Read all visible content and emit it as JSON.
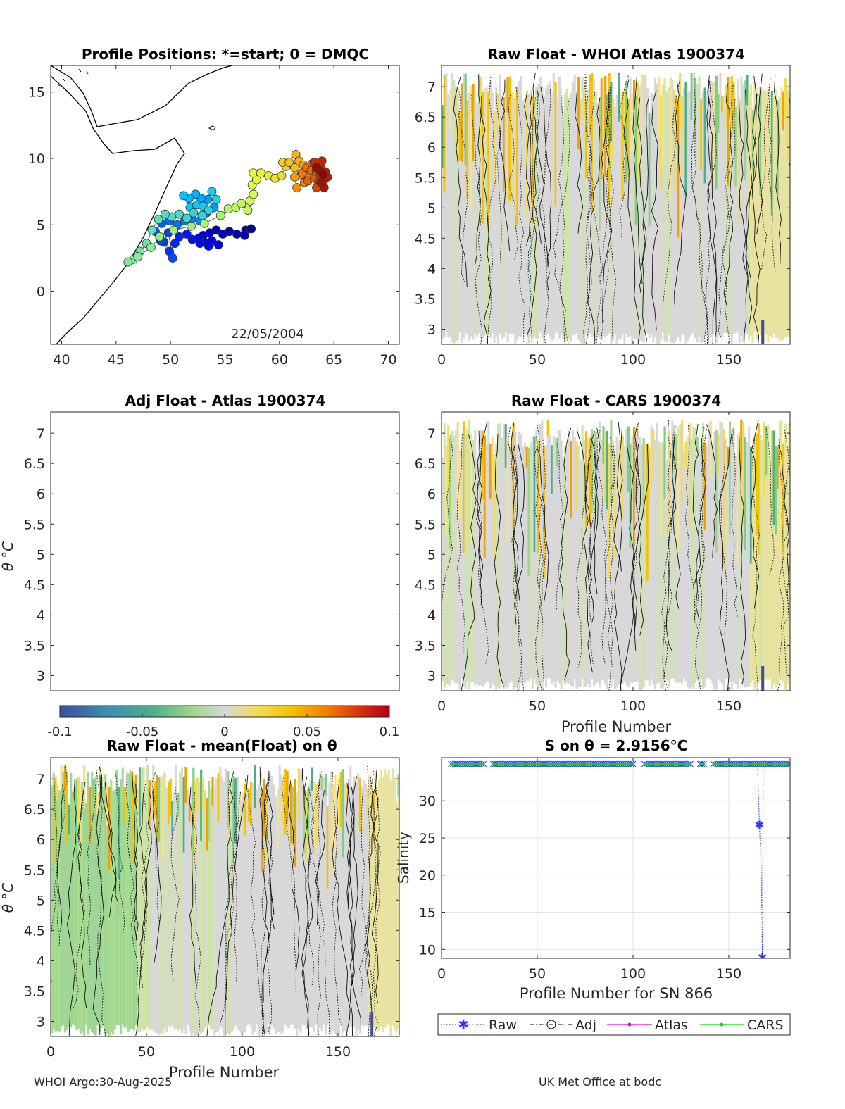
{
  "footer": {
    "left": "WHOI Argo:30-Aug-2025",
    "right": "UK Met Office at bodc"
  },
  "chart_data": [
    {
      "id": "positions",
      "type": "scatter",
      "title": "Profile Positions: *=start; 0 = DMQC",
      "xlim": [
        39,
        71
      ],
      "ylim": [
        -4,
        17
      ],
      "xticks": [
        40,
        45,
        50,
        55,
        60,
        65,
        70
      ],
      "yticks": [
        0,
        5,
        10,
        15
      ],
      "annotation": "22/05/2004",
      "track": [
        [
          56.9,
          4.6
        ],
        [
          57.4,
          4.7
        ],
        [
          56.8,
          4.2
        ],
        [
          56.1,
          4.3
        ],
        [
          55.4,
          4.5
        ],
        [
          54.8,
          4.3
        ],
        [
          54.2,
          4.6
        ],
        [
          53.6,
          4.4
        ],
        [
          53.0,
          4.2
        ],
        [
          52.6,
          4.0
        ],
        [
          53.1,
          3.7
        ],
        [
          53.8,
          3.8
        ],
        [
          54.4,
          3.5
        ],
        [
          53.5,
          3.4
        ],
        [
          52.7,
          3.6
        ],
        [
          52.0,
          3.9
        ],
        [
          51.5,
          4.3
        ],
        [
          50.8,
          4.1
        ],
        [
          50.4,
          3.6
        ],
        [
          49.9,
          3.0
        ],
        [
          49.4,
          3.7
        ],
        [
          49.8,
          4.4
        ],
        [
          50.2,
          2.5
        ],
        [
          49.1,
          3.8
        ],
        [
          48.6,
          4.5
        ],
        [
          49.2,
          5.1
        ],
        [
          49.9,
          5.3
        ],
        [
          50.6,
          5.0
        ],
        [
          51.3,
          5.3
        ],
        [
          52.0,
          5.5
        ],
        [
          52.7,
          5.3
        ],
        [
          53.3,
          5.9
        ],
        [
          54.0,
          6.3
        ],
        [
          53.4,
          6.9
        ],
        [
          52.8,
          7.0
        ],
        [
          52.3,
          7.3
        ],
        [
          51.7,
          7.0
        ],
        [
          51.2,
          7.2
        ],
        [
          51.8,
          6.3
        ],
        [
          52.4,
          6.5
        ],
        [
          53.0,
          6.4
        ],
        [
          53.8,
          7.5
        ],
        [
          54.2,
          6.9
        ],
        [
          53.5,
          6.1
        ],
        [
          52.9,
          5.7
        ],
        [
          52.1,
          5.9
        ],
        [
          51.5,
          5.5
        ],
        [
          50.8,
          5.8
        ],
        [
          50.1,
          5.6
        ],
        [
          49.5,
          5.8
        ],
        [
          48.9,
          5.4
        ],
        [
          48.3,
          4.6
        ],
        [
          47.8,
          3.6
        ],
        [
          47.2,
          3.0
        ],
        [
          46.6,
          2.4
        ],
        [
          46.1,
          2.2
        ],
        [
          47.0,
          2.6
        ],
        [
          48.2,
          3.3
        ],
        [
          49.0,
          4.1
        ],
        [
          50.3,
          4.6
        ],
        [
          51.9,
          4.9
        ],
        [
          53.1,
          5.1
        ],
        [
          54.6,
          5.7
        ],
        [
          55.3,
          6.2
        ],
        [
          56.0,
          6.3
        ],
        [
          56.5,
          6.6
        ],
        [
          57.1,
          6.1
        ],
        [
          57.3,
          6.8
        ],
        [
          57.6,
          7.3
        ],
        [
          57.5,
          8.0
        ],
        [
          57.9,
          8.4
        ],
        [
          57.6,
          8.9
        ],
        [
          58.3,
          8.9
        ],
        [
          59.0,
          8.7
        ],
        [
          59.6,
          8.5
        ],
        [
          60.2,
          8.7
        ],
        [
          60.6,
          9.4
        ],
        [
          60.3,
          9.7
        ],
        [
          60.9,
          9.7
        ],
        [
          61.4,
          9.3
        ],
        [
          61.5,
          10.3
        ],
        [
          61.8,
          9.8
        ],
        [
          62.2,
          9.5
        ],
        [
          62.0,
          8.8
        ],
        [
          61.4,
          8.6
        ],
        [
          61.6,
          7.8
        ],
        [
          62.3,
          8.2
        ],
        [
          62.7,
          8.6
        ],
        [
          62.1,
          8.9
        ],
        [
          62.5,
          9.3
        ],
        [
          63.0,
          9.6
        ],
        [
          62.9,
          9.1
        ],
        [
          62.6,
          8.3
        ],
        [
          63.2,
          8.5
        ],
        [
          63.4,
          9.0
        ],
        [
          63.6,
          8.2
        ],
        [
          63.4,
          7.8
        ],
        [
          63.8,
          8.7
        ],
        [
          64.1,
          8.4
        ],
        [
          63.8,
          9.3
        ],
        [
          63.2,
          9.7
        ],
        [
          63.9,
          9.8
        ],
        [
          64.2,
          9.0
        ],
        [
          64.4,
          8.6
        ],
        [
          64.1,
          7.8
        ],
        [
          63.8,
          8.2
        ],
        [
          63.7,
          9.1
        ],
        [
          63.4,
          9.3
        ],
        [
          64.0,
          8.8
        ]
      ]
    },
    {
      "id": "whoi",
      "type": "heatmap",
      "title": "Raw Float - WHOI Atlas  1900374",
      "xlim": [
        0,
        182
      ],
      "ylim": [
        2.75,
        7.35
      ],
      "xticks": [
        0,
        50,
        100,
        150
      ],
      "yticks": [
        3,
        3.5,
        4,
        4.5,
        5,
        5.5,
        6,
        6.5,
        7
      ],
      "xlabel": "",
      "ylabel": ""
    },
    {
      "id": "adj",
      "type": "heatmap",
      "title": "Adj Float - Atlas  1900374",
      "xlim": [
        0,
        182
      ],
      "ylim": [
        2.75,
        7.35
      ],
      "xticks": [],
      "yticks": [
        3,
        3.5,
        4,
        4.5,
        5,
        5.5,
        6,
        6.5,
        7
      ],
      "xlabel": "",
      "ylabel": "θ °C"
    },
    {
      "id": "cars",
      "type": "heatmap",
      "title": "Raw Float - CARS  1900374",
      "xlim": [
        0,
        182
      ],
      "ylim": [
        2.75,
        7.35
      ],
      "xticks": [
        0,
        50,
        100,
        150
      ],
      "yticks": [
        3,
        3.5,
        4,
        4.5,
        5,
        5.5,
        6,
        6.5,
        7
      ],
      "xlabel": "Profile Number",
      "ylabel": ""
    },
    {
      "id": "colorbar",
      "type": "heatmap",
      "range": [
        -0.1,
        0.1
      ],
      "ticks": [
        "-0.1",
        "-0.05",
        "0",
        "0.05",
        "0.1"
      ],
      "tick_values": [
        -0.1,
        -0.05,
        0,
        0.05,
        0.1
      ]
    },
    {
      "id": "mean",
      "type": "heatmap",
      "title": "Raw Float - mean(Float) on θ",
      "xlim": [
        0,
        182
      ],
      "ylim": [
        2.75,
        7.35
      ],
      "xticks": [
        0,
        50,
        100,
        150
      ],
      "yticks": [
        3,
        3.5,
        4,
        4.5,
        5,
        5.5,
        6,
        6.5,
        7
      ],
      "xlabel": "Profile Number",
      "ylabel": "θ °C"
    },
    {
      "id": "salinity",
      "type": "line",
      "title": "S on θ = 2.9156°C",
      "xlim": [
        0,
        182
      ],
      "ylim": [
        8.8,
        35.8
      ],
      "xticks": [
        0,
        50,
        100,
        150
      ],
      "yticks": [
        10,
        15,
        20,
        25,
        30
      ],
      "xlabel": "Profile Number for SN 866",
      "ylabel": "Salinity",
      "grid": true,
      "legend": [
        "Raw",
        "Adj",
        "Atlas",
        "CARS"
      ],
      "legend_position": "bottom",
      "cars_level": 34.95,
      "cars_gaps": [
        [
          23,
          26
        ],
        [
          101,
          105
        ],
        [
          131,
          134
        ],
        [
          138,
          141
        ]
      ],
      "raw_outliers": [
        [
          166,
          26.8
        ],
        [
          167.5,
          9.0
        ]
      ]
    }
  ]
}
